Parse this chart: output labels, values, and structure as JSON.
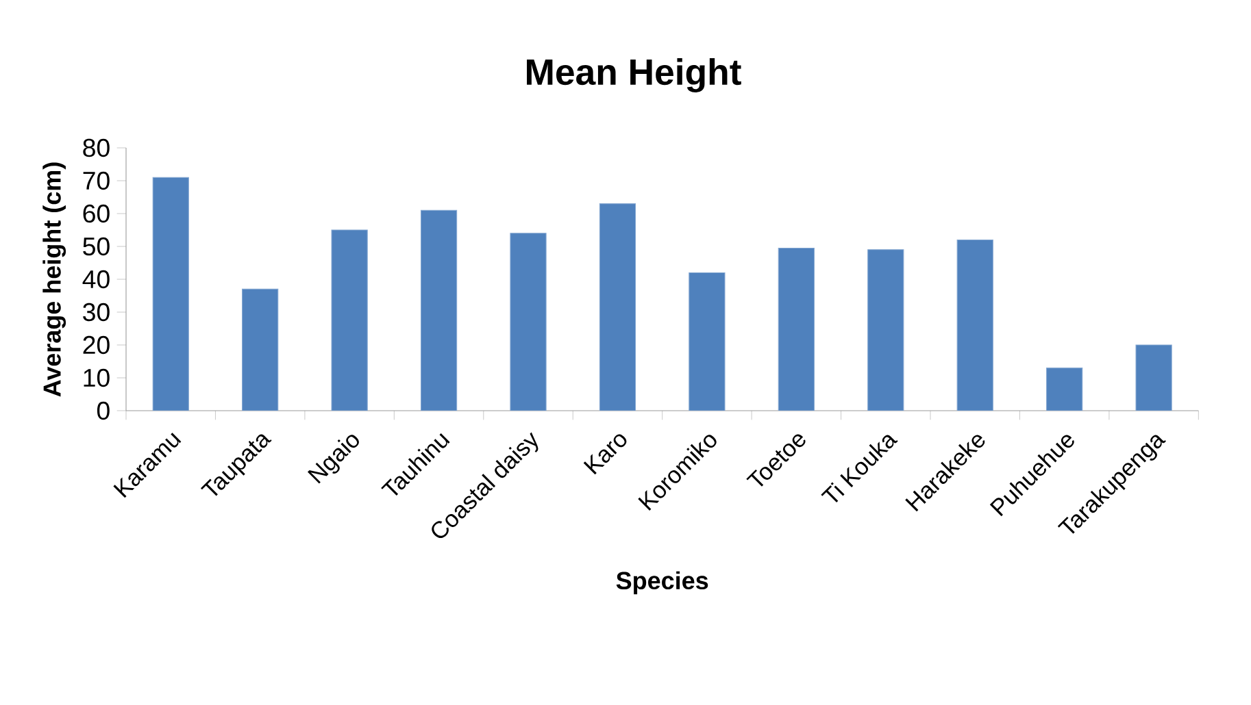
{
  "chart_data": {
    "type": "bar",
    "title": "Mean Height",
    "xlabel": "Species",
    "ylabel": "Average height (cm)",
    "categories": [
      "Karamu",
      "Taupata",
      "Ngaio",
      "Tauhinu",
      "Coastal daisy",
      "Karo",
      "Koromiko",
      "Toetoe",
      "Ti Kouka",
      "Harakeke",
      "Puhuehue",
      "Tarakupenga"
    ],
    "values": [
      71,
      37,
      55,
      61,
      54,
      63,
      42,
      49.5,
      49,
      52,
      13,
      20
    ],
    "color": "#4f81bd",
    "ylim": [
      0,
      80
    ],
    "yticks": [
      0,
      10,
      20,
      30,
      40,
      50,
      60,
      70,
      80
    ],
    "grid": false
  }
}
